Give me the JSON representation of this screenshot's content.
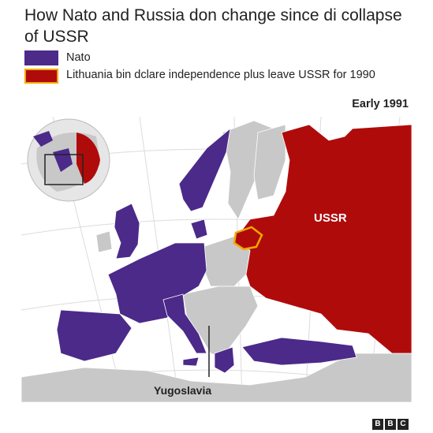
{
  "title": "How Nato and Russia don change since di collapse of USSR",
  "legend": [
    {
      "label": "Nato",
      "color": "#4b2a8a"
    },
    {
      "label": "Lithuania bin dclare independence  plus leave USSR for 1990",
      "color": "#b00b0b",
      "border": "#f2a900"
    }
  ],
  "subtitle": "Early 1991",
  "map": {
    "labels": {
      "ussr": "USSR",
      "yugoslavia": "Yugoslavia"
    },
    "colors": {
      "nato": "#4b2a8a",
      "ussr": "#b00b0b",
      "other": "#c8c8c8",
      "sea": "#ffffff",
      "lithuania_border": "#f2a900"
    }
  },
  "logo": [
    "B",
    "B",
    "C"
  ]
}
